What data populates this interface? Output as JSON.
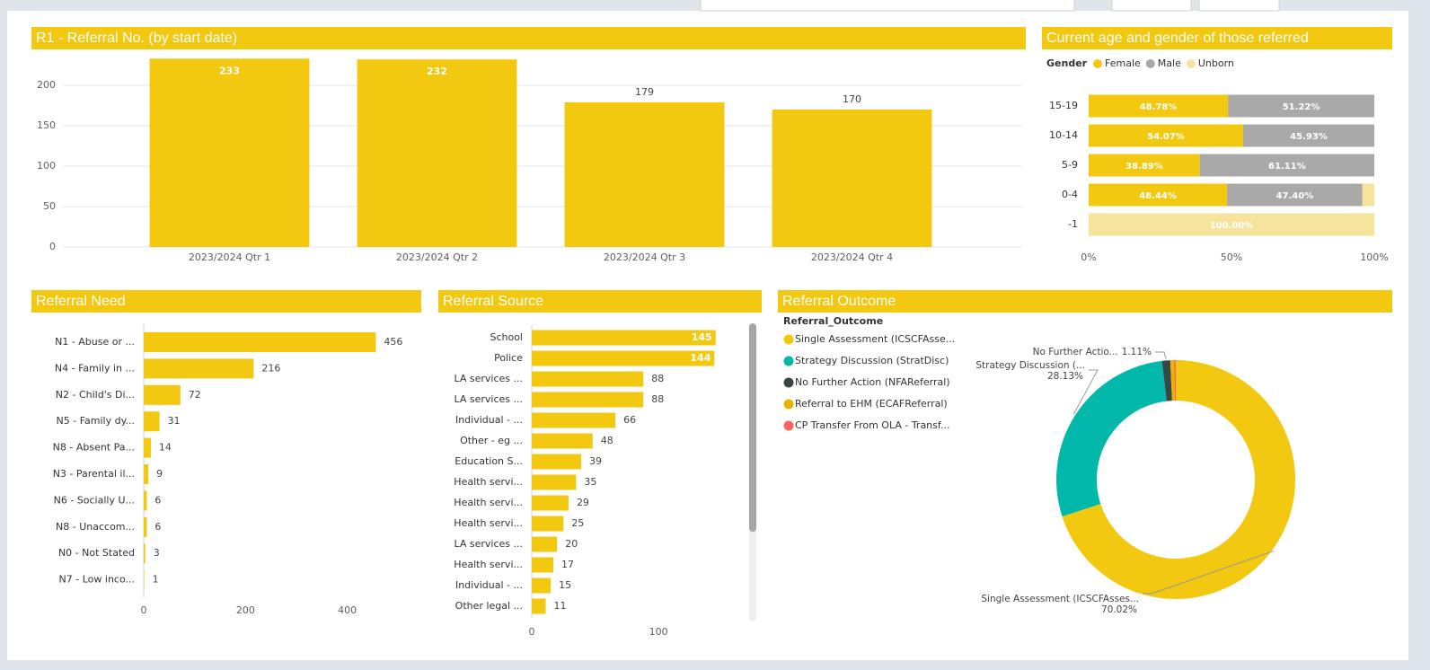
{
  "chart_data": [
    {
      "type": "bar",
      "title": "R1 - Referral No. (by start date)",
      "categories": [
        "2023/2024 Qtr 1",
        "2023/2024 Qtr 2",
        "2023/2024 Qtr 3",
        "2023/2024 Qtr 4"
      ],
      "values": [
        233,
        232,
        179,
        170
      ],
      "color": "#f2c811",
      "ylim": [
        0,
        240
      ],
      "yticks": [
        0,
        50,
        100,
        150,
        200
      ],
      "grid": true
    },
    {
      "type": "bar",
      "orientation": "horizontal",
      "stacked": true,
      "title": "Current age and gender of those referred",
      "legend_title": "Gender",
      "legend": "top-left",
      "categories": [
        "15-19",
        "10-14",
        "5-9",
        "0-4",
        "-1"
      ],
      "series": [
        {
          "name": "Female",
          "color": "#f2c811",
          "values": [
            48.78,
            54.07,
            38.89,
            48.44,
            null
          ],
          "value_labels": [
            "48.78%",
            "54.07%",
            "38.89%",
            "48.44%",
            null
          ]
        },
        {
          "name": "Male",
          "color": "#a9a9a9",
          "values": [
            51.22,
            45.93,
            61.11,
            47.4,
            null
          ],
          "value_labels": [
            "51.22%",
            "45.93%",
            "61.11%",
            "47.40%",
            null
          ]
        },
        {
          "name": "Unborn",
          "color": "#f6e39c",
          "values": [
            null,
            null,
            null,
            4.16,
            100
          ],
          "value_labels": [
            null,
            null,
            null,
            null,
            "100.00%"
          ]
        }
      ],
      "xlim": [
        0,
        100
      ],
      "xticks": [
        {
          "value": 0,
          "label": "0%"
        },
        {
          "value": 50,
          "label": "50%"
        },
        {
          "value": 100,
          "label": "100%"
        }
      ]
    },
    {
      "type": "bar",
      "orientation": "horizontal",
      "title": "Referral Need",
      "categories": [
        "N1 - Abuse or ...",
        "N4 - Family in ...",
        "N2 - Child's Di...",
        "N5 - Family dy...",
        "N8 - Absent Pa...",
        "N3 - Parental il...",
        "N6 - Socially U...",
        "N8 - Unaccom...",
        "N0 - Not Stated",
        "N7 - Low inco..."
      ],
      "values": [
        456,
        216,
        72,
        31,
        14,
        9,
        6,
        6,
        3,
        1
      ],
      "color": "#f2c811",
      "xlim": [
        0,
        480
      ],
      "xticks": [
        0,
        200,
        400
      ]
    },
    {
      "type": "bar",
      "orientation": "horizontal",
      "title": "Referral Source",
      "categories": [
        "School",
        "Police",
        "LA services ...",
        "LA services ...",
        "Individual - ...",
        "Other - eg ...",
        "Education S...",
        "Health servi...",
        "Health servi...",
        "Health servi...",
        "LA services ...",
        "Health servi...",
        "Individual - ...",
        "Other legal ..."
      ],
      "values": [
        145,
        144,
        88,
        88,
        66,
        48,
        39,
        35,
        29,
        25,
        20,
        17,
        15,
        11
      ],
      "color": "#f2c811",
      "xlim": [
        0,
        170
      ],
      "xticks": [
        0,
        100
      ]
    },
    {
      "type": "pie",
      "donut": true,
      "title": "Referral Outcome",
      "legend_title": "Referral_Outcome",
      "legend": "top-left",
      "categories": [
        "Single Assessment (ICSCFAsse...",
        "Strategy Discussion (StratDisc)",
        "No Further Action (NFAReferral)",
        "Referral to EHM (ECAFReferral)",
        "CP Transfer From OLA - Transf..."
      ],
      "label_names": [
        "Single Assessment (ICSCFAsses...",
        "Strategy Discussion (...",
        "No Further Actio...",
        null,
        null
      ],
      "values": [
        70.02,
        28.13,
        1.11,
        0.54,
        0.2
      ],
      "value_labels": [
        "70.02%",
        "28.13%",
        "1.11%",
        null,
        null
      ],
      "colors": [
        "#f2c811",
        "#01b8aa",
        "#374649",
        "#e8b400",
        "#fd625e"
      ]
    }
  ]
}
